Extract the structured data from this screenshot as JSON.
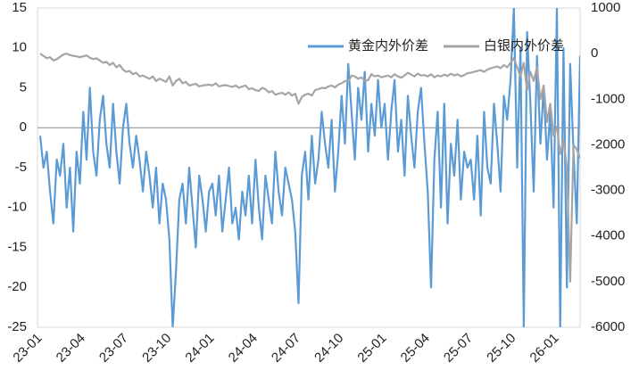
{
  "chart_data": {
    "type": "line",
    "categories": [
      "23-01",
      null,
      null,
      null,
      null,
      null,
      null,
      null,
      null,
      null,
      null,
      null,
      null,
      "23-04",
      null,
      null,
      null,
      null,
      null,
      null,
      null,
      null,
      null,
      null,
      null,
      null,
      "23-07",
      null,
      null,
      null,
      null,
      null,
      null,
      null,
      null,
      null,
      null,
      null,
      null,
      "23-10",
      null,
      null,
      null,
      null,
      null,
      null,
      null,
      null,
      null,
      null,
      null,
      null,
      "24-01",
      null,
      null,
      null,
      null,
      null,
      null,
      null,
      null,
      null,
      null,
      null,
      null,
      "24-04",
      null,
      null,
      null,
      null,
      null,
      null,
      null,
      null,
      null,
      null,
      null,
      null,
      "24-07",
      null,
      null,
      null,
      null,
      null,
      null,
      null,
      null,
      null,
      null,
      null,
      null,
      "24-10",
      null,
      null,
      null,
      null,
      null,
      null,
      null,
      null,
      null,
      null,
      null,
      null,
      "25-01",
      null,
      null,
      null,
      null,
      null,
      null,
      null,
      null,
      null,
      null,
      null,
      null,
      "25-04",
      null,
      null,
      null,
      null,
      null,
      null,
      null,
      null,
      null,
      null,
      null,
      null,
      "25-07",
      null,
      null,
      null,
      null,
      null,
      null,
      null,
      null,
      null,
      null,
      null,
      null,
      "25-10",
      null,
      null,
      null,
      null,
      null,
      null,
      null,
      null,
      null,
      null,
      null,
      null,
      "26-01",
      null,
      null,
      null,
      null,
      null,
      null,
      null
    ],
    "series": [
      {
        "name": "黄金内外价差",
        "color": "#5b9bd5",
        "axis": "y",
        "values": [
          -1,
          -5,
          -3,
          -8,
          -12,
          -4,
          -6,
          -2,
          -10,
          -5,
          -13,
          -3,
          -7,
          2,
          -4,
          5,
          -3,
          -6,
          1,
          4,
          -2,
          -5,
          3,
          -3,
          -7,
          0,
          3,
          -2,
          -5,
          -1,
          -4,
          -8,
          -3,
          -6,
          -10,
          -5,
          -12,
          -7,
          -9,
          -14,
          -25,
          -18,
          -9,
          -7,
          -12,
          -5,
          -10,
          -15,
          -6,
          -9,
          -13,
          -8,
          -7,
          -11,
          -6,
          -13,
          -9,
          -5,
          -12,
          -10,
          -14,
          -8,
          -11,
          -6,
          -12,
          -4,
          -10,
          -14,
          -6,
          -9,
          -12,
          -3,
          -8,
          -11,
          -5,
          -7,
          -9,
          -13,
          -22,
          -6,
          -3,
          -9,
          -1,
          -7,
          -4,
          2,
          -2,
          -5,
          1,
          -8,
          -3,
          4,
          -2,
          8,
          2,
          -4,
          5,
          1,
          7,
          -3,
          3,
          -1,
          6,
          0,
          3,
          -4,
          2,
          6,
          -3,
          1,
          -6,
          4,
          -1,
          -5,
          2,
          5,
          -2,
          -8,
          -20,
          -4,
          2,
          -10,
          3,
          -12,
          -2,
          -6,
          1,
          -9,
          -3,
          -5,
          -4,
          -9,
          -1,
          -11,
          2,
          -5,
          -7,
          3,
          -2,
          -8,
          4,
          1,
          6,
          15,
          -5,
          10,
          -25,
          12,
          3,
          -8,
          9,
          -2,
          5,
          -4,
          2,
          -10,
          15,
          -25,
          10,
          -20,
          8,
          -3,
          -12,
          9
        ]
      },
      {
        "name": "白银内外价差",
        "color": "#a5a5a5",
        "axis": "y2",
        "values": [
          0,
          -50,
          -100,
          -80,
          -150,
          -120,
          -70,
          -20,
          0,
          -30,
          -50,
          -60,
          -80,
          -60,
          -40,
          -90,
          -120,
          -100,
          -150,
          -200,
          -180,
          -250,
          -200,
          -300,
          -250,
          -350,
          -400,
          -380,
          -450,
          -420,
          -500,
          -480,
          -520,
          -550,
          -500,
          -600,
          -550,
          -580,
          -620,
          -500,
          -700,
          -600,
          -550,
          -650,
          -620,
          -700,
          -680,
          -660,
          -720,
          -700,
          -690,
          -680,
          -700,
          -650,
          -720,
          -700,
          -690,
          -710,
          -730,
          -700,
          -750,
          -720,
          -700,
          -780,
          -760,
          -800,
          -820,
          -750,
          -780,
          -850,
          -820,
          -900,
          -880,
          -860,
          -900,
          -850,
          -920,
          -880,
          -1100,
          -950,
          -900,
          -880,
          -920,
          -800,
          -780,
          -750,
          -760,
          -720,
          -700,
          -740,
          -680,
          -650,
          -600,
          -620,
          -480,
          -500,
          -550,
          -520,
          -600,
          -580,
          -450,
          -500,
          -480,
          -520,
          -500,
          -480,
          -520,
          -450,
          -500,
          -530,
          -480,
          -420,
          -460,
          -500,
          -440,
          -480,
          -470,
          -500,
          -450,
          -520,
          -480,
          -500,
          -460,
          -490,
          -440,
          -480,
          -450,
          -500,
          -470,
          -430,
          -420,
          -400,
          -380,
          -360,
          -400,
          -350,
          -320,
          -300,
          -280,
          -320,
          -250,
          -300,
          -200,
          -100,
          -300,
          -500,
          -200,
          -800,
          -400,
          -600,
          -300,
          -1000,
          -700,
          -1500,
          -1100,
          -1800,
          -1600,
          -2200,
          -1900,
          -2500,
          -5000,
          -2000,
          -2100,
          -2300
        ]
      }
    ],
    "ylim": [
      -25,
      15
    ],
    "yticks": [
      -25,
      -20,
      -15,
      -10,
      -5,
      0,
      5,
      10,
      15
    ],
    "y2lim": [
      -6000,
      1000
    ],
    "y2ticks": [
      -6000,
      -5000,
      -4000,
      -3000,
      -2000,
      -1000,
      0,
      1000
    ],
    "legend": "top-right"
  }
}
